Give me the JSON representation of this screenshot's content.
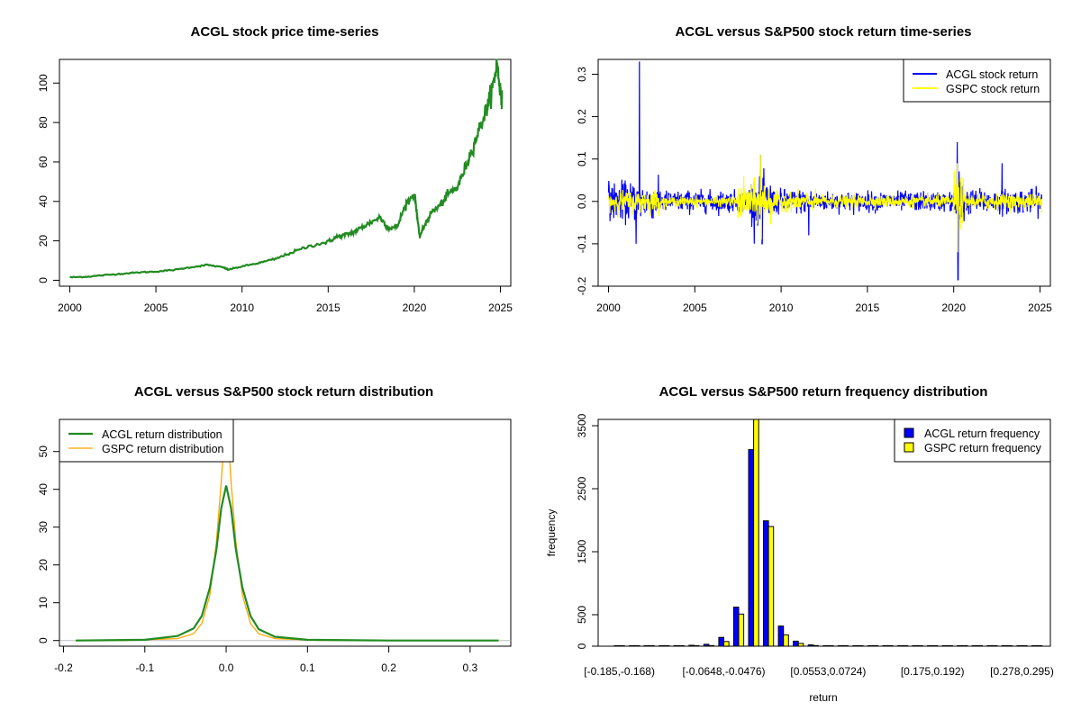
{
  "colors": {
    "acgl_price": "#228B22",
    "acgl_return": "#0000FF",
    "gspc_return": "#FFFF00",
    "gspc_density": "#FFA500",
    "acgl_density": "#228B22",
    "axis": "#000000",
    "grey_line": "#BEBEBE"
  },
  "chart_data": [
    {
      "id": "price",
      "type": "line",
      "title": "ACGL stock price time-series",
      "xlabel": "",
      "ylabel": "",
      "xlim": [
        1999.4,
        2025.6
      ],
      "ylim": [
        -3,
        112
      ],
      "xticks": [
        2000,
        2005,
        2010,
        2015,
        2020,
        2025
      ],
      "xtick_labels": [
        "2000",
        "2005",
        "2010",
        "2015",
        "2020",
        "2025"
      ],
      "yticks": [
        0,
        20,
        40,
        60,
        80,
        100
      ],
      "ytick_labels": [
        "0",
        "20",
        "40",
        "60",
        "80",
        "100"
      ],
      "series": [
        {
          "name": "ACGL price",
          "x": [
            2000.0,
            2001.0,
            2002.0,
            2003.0,
            2004.0,
            2005.0,
            2006.0,
            2007.0,
            2008.0,
            2008.9,
            2009.2,
            2010.0,
            2011.0,
            2012.0,
            2013.0,
            2014.0,
            2015.0,
            2015.5,
            2016.0,
            2016.5,
            2017.0,
            2017.5,
            2018.0,
            2018.5,
            2019.0,
            2019.5,
            2020.0,
            2020.1,
            2020.3,
            2020.6,
            2021.0,
            2021.5,
            2022.0,
            2022.5,
            2023.0,
            2023.5,
            2024.0,
            2024.3,
            2024.6,
            2024.8,
            2025.0,
            2025.1
          ],
          "y": [
            1.5,
            1.8,
            2.6,
            3.3,
            4.0,
            4.4,
            5.2,
            6.6,
            7.8,
            6.5,
            5.4,
            7.0,
            8.8,
            11.0,
            14.5,
            17.5,
            19.5,
            22.0,
            23.0,
            24.5,
            27.0,
            29.5,
            32.0,
            26.5,
            27.0,
            38.5,
            44.0,
            38.0,
            22.0,
            28.0,
            34.5,
            38.0,
            44.0,
            47.0,
            58.0,
            70.0,
            82.0,
            90.0,
            100.0,
            110.0,
            96.0,
            92.0
          ]
        }
      ]
    },
    {
      "id": "returns",
      "type": "line",
      "title": "ACGL versus S&P500 stock return time-series",
      "xlabel": "",
      "ylabel": "",
      "xlim": [
        1999.4,
        2025.6
      ],
      "ylim": [
        -0.2,
        0.335
      ],
      "xticks": [
        2000,
        2005,
        2010,
        2015,
        2020,
        2025
      ],
      "xtick_labels": [
        "2000",
        "2005",
        "2010",
        "2015",
        "2020",
        "2025"
      ],
      "yticks": [
        -0.2,
        -0.1,
        0.0,
        0.1,
        0.2,
        0.3
      ],
      "ytick_labels": [
        "-0.2",
        "-0.1",
        "0.0",
        "0.1",
        "0.2",
        "0.3"
      ],
      "legend": {
        "position": "top-right",
        "entries": [
          "ACGL stock return",
          "GSPC stock return"
        ]
      },
      "series": [
        {
          "name": "ACGL stock return",
          "volatility_segments": [
            [
              2000,
              2002,
              0.04
            ],
            [
              2002,
              2003,
              0.035
            ],
            [
              2003,
              2008,
              0.022
            ],
            [
              2008,
              2009.5,
              0.045
            ],
            [
              2009.5,
              2012,
              0.025
            ],
            [
              2012,
              2020,
              0.02
            ],
            [
              2020,
              2020.6,
              0.06
            ],
            [
              2020.6,
              2025,
              0.025
            ]
          ],
          "spikes": [
            [
              2001.8,
              0.33
            ],
            [
              2001.6,
              -0.1
            ],
            [
              2008.8,
              0.11
            ],
            [
              2008.9,
              -0.1
            ],
            [
              2011.6,
              -0.08
            ],
            [
              2020.2,
              0.14
            ],
            [
              2020.25,
              -0.185
            ],
            [
              2022.8,
              0.09
            ]
          ]
        },
        {
          "name": "GSPC stock return",
          "volatility_segments": [
            [
              2000,
              2003,
              0.022
            ],
            [
              2003,
              2007.5,
              0.01
            ],
            [
              2007.5,
              2009.5,
              0.04
            ],
            [
              2009.5,
              2012,
              0.018
            ],
            [
              2012,
              2020,
              0.012
            ],
            [
              2020,
              2020.6,
              0.05
            ],
            [
              2020.6,
              2025,
              0.016
            ]
          ],
          "spikes": [
            [
              2008.8,
              0.11
            ],
            [
              2008.85,
              -0.09
            ],
            [
              2020.2,
              0.09
            ],
            [
              2020.22,
              -0.12
            ]
          ]
        }
      ]
    },
    {
      "id": "density",
      "type": "line",
      "title": "ACGL versus S&P500 stock return distribution",
      "xlabel": "",
      "ylabel": "",
      "xlim": [
        -0.205,
        0.35
      ],
      "ylim": [
        -1.5,
        58.5
      ],
      "xticks": [
        -0.2,
        -0.1,
        0.0,
        0.1,
        0.2,
        0.3
      ],
      "xtick_labels": [
        "-0.2",
        "-0.1",
        "0.0",
        "0.1",
        "0.2",
        "0.3"
      ],
      "yticks": [
        0,
        10,
        20,
        30,
        40,
        50
      ],
      "ytick_labels": [
        "0",
        "10",
        "20",
        "30",
        "40",
        "50"
      ],
      "legend": {
        "position": "top-left",
        "entries": [
          "ACGL return distribution",
          "GSPC return distribution"
        ]
      },
      "series": [
        {
          "name": "ACGL return distribution",
          "x": [
            -0.185,
            -0.1,
            -0.06,
            -0.04,
            -0.03,
            -0.02,
            -0.012,
            -0.006,
            0.0,
            0.006,
            0.012,
            0.02,
            0.03,
            0.04,
            0.06,
            0.1,
            0.2,
            0.335
          ],
          "y": [
            0,
            0.2,
            1.2,
            3.2,
            6.5,
            14.0,
            24.0,
            35.0,
            41.0,
            35.0,
            24.0,
            14.0,
            6.5,
            3.0,
            1.0,
            0.2,
            0,
            0
          ]
        },
        {
          "name": "GSPC return distribution",
          "x": [
            -0.13,
            -0.06,
            -0.04,
            -0.03,
            -0.02,
            -0.012,
            -0.006,
            -0.002,
            0.0,
            0.002,
            0.006,
            0.012,
            0.02,
            0.03,
            0.04,
            0.06,
            0.12
          ],
          "y": [
            0,
            0.5,
            1.8,
            4.5,
            12.0,
            26.0,
            42.0,
            55.0,
            58.0,
            55.0,
            42.0,
            26.0,
            12.0,
            4.5,
            1.8,
            0.5,
            0
          ]
        }
      ]
    },
    {
      "id": "freq",
      "type": "bar",
      "title": "ACGL versus S&P500 return frequency distribution",
      "xlabel": "return",
      "ylabel": "frequency",
      "ylim": [
        0,
        3600
      ],
      "yticks": [
        0,
        500,
        1500,
        2500,
        3500
      ],
      "ytick_labels": [
        "0",
        "500",
        "1500",
        "2500",
        "3500"
      ],
      "category_labels_shown": [
        "[-0.185,-0.168)",
        "[-0.0648,-0.0476)",
        "[0.0553,0.0724)",
        "[0.175,0.192)",
        "[0.278,0.295)"
      ],
      "category_label_positions": [
        0,
        7,
        14,
        21,
        27
      ],
      "legend": {
        "position": "top-right",
        "entries": [
          "ACGL return frequency",
          "GSPC return frequency"
        ]
      },
      "series": [
        {
          "name": "ACGL return frequency",
          "values": [
            1,
            1,
            2,
            4,
            8,
            15,
            30,
            140,
            620,
            3120,
            1990,
            320,
            80,
            22,
            8,
            4,
            2,
            1,
            1,
            1,
            0,
            0,
            0,
            0,
            0,
            0,
            0,
            0,
            1
          ]
        },
        {
          "name": "GSPC return frequency",
          "values": [
            0,
            0,
            0,
            1,
            3,
            6,
            10,
            75,
            510,
            3600,
            1900,
            180,
            45,
            10,
            3,
            1,
            0,
            0,
            0,
            0,
            0,
            0,
            0,
            0,
            0,
            0,
            0,
            0,
            0
          ]
        }
      ]
    }
  ]
}
